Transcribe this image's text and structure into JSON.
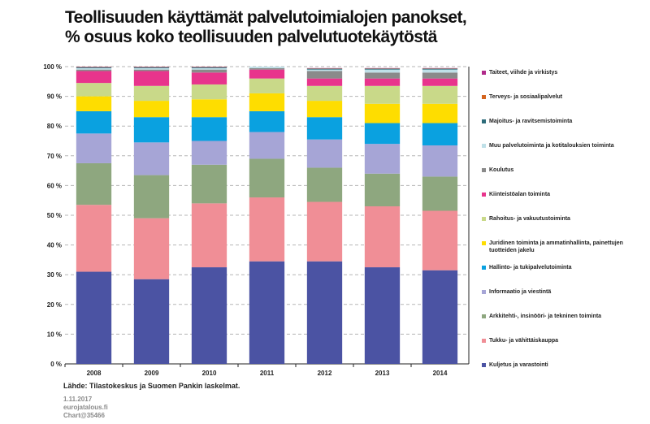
{
  "title": {
    "line1": "Teollisuuden käyttämät palvelutoimialojen panokset,",
    "line2": "% osuus koko teollisuuden palvelutuotekäytöstä"
  },
  "source": "Lähde: Tilastokeskus ja Suomen Pankin laskelmat.",
  "footer": {
    "date": "1.11.2017",
    "site": "eurojatalous.fi",
    "id": "Chart@35466"
  },
  "chart_data": {
    "type": "bar",
    "stacked": true,
    "categories": [
      "2008",
      "2009",
      "2010",
      "2011",
      "2012",
      "2013",
      "2014"
    ],
    "ylim": [
      0,
      100
    ],
    "yticks": [
      0,
      10,
      20,
      30,
      40,
      50,
      60,
      70,
      80,
      90,
      100
    ],
    "ytick_labels": [
      "0 %",
      "10 %",
      "20 %",
      "30 %",
      "40 %",
      "50 %",
      "60 %",
      "70 %",
      "80 %",
      "90 %",
      "100 %"
    ],
    "grid": "horizontal dashed",
    "legend_position": "right",
    "series": [
      {
        "name": "Kuljetus ja varastointi",
        "color": "#4b53a3",
        "values": [
          31,
          28.5,
          32.5,
          34.5,
          34.5,
          32.5,
          31.5
        ]
      },
      {
        "name": "Tukku- ja vähittäiskauppa",
        "color": "#f08e96",
        "values": [
          22.5,
          20.5,
          21.5,
          21.5,
          20,
          20.5,
          20
        ]
      },
      {
        "name": "Arkkitehti-, insinööri- ja tekninen toiminta",
        "color": "#8ea77f",
        "values": [
          14,
          14.5,
          13,
          13,
          11.5,
          11,
          11.5
        ]
      },
      {
        "name": "Informaatio ja viestintä",
        "color": "#a6a5d6",
        "values": [
          10,
          11,
          8,
          9,
          9.5,
          10,
          10.5
        ]
      },
      {
        "name": "Hallinto- ja tukipalvelutoiminta",
        "color": "#0aa1e0",
        "values": [
          7.5,
          8.5,
          8,
          7,
          7.5,
          7,
          7.5
        ]
      },
      {
        "name": "Juridinen toiminta ja ammatinhallinta, painettujen tuotteiden jakelu",
        "color": "#fedd00",
        "values": [
          5,
          5.5,
          6,
          6,
          5.5,
          6.5,
          6.5
        ]
      },
      {
        "name": "Rahoitus- ja vakuutustoiminta",
        "color": "#c9d989",
        "values": [
          4.5,
          5,
          5,
          5,
          5,
          6,
          6
        ]
      },
      {
        "name": "Kiinteistöalan toiminta",
        "color": "#e8348c",
        "values": [
          4,
          5,
          4,
          3,
          2.5,
          2.5,
          2.5
        ]
      },
      {
        "name": "Koulutus",
        "color": "#8a8a8a",
        "values": [
          0.5,
          0.5,
          1,
          0.5,
          2.5,
          2,
          2
        ]
      },
      {
        "name": "Muu palvelutoiminta ja kotitalouksien toiminta",
        "color": "#bfe0e8",
        "values": [
          0.5,
          0.5,
          0.5,
          0.5,
          0.5,
          1,
          1
        ]
      },
      {
        "name": "Majoitus- ja ravitsemistoiminta",
        "color": "#2d6c7a",
        "values": [
          0.3,
          0.3,
          0.3,
          0.3,
          0.3,
          0.3,
          0.3
        ]
      },
      {
        "name": "Terveys- ja sosiaalipalvelut",
        "color": "#d4641e",
        "values": [
          0.1,
          0.1,
          0.1,
          0.1,
          0.1,
          0.1,
          0.1
        ]
      },
      {
        "name": "Taiteet, viihde ja virkistys",
        "color": "#b02a8a",
        "values": [
          0.1,
          0.1,
          0.1,
          0.1,
          0.1,
          0.1,
          0.1
        ]
      }
    ]
  }
}
